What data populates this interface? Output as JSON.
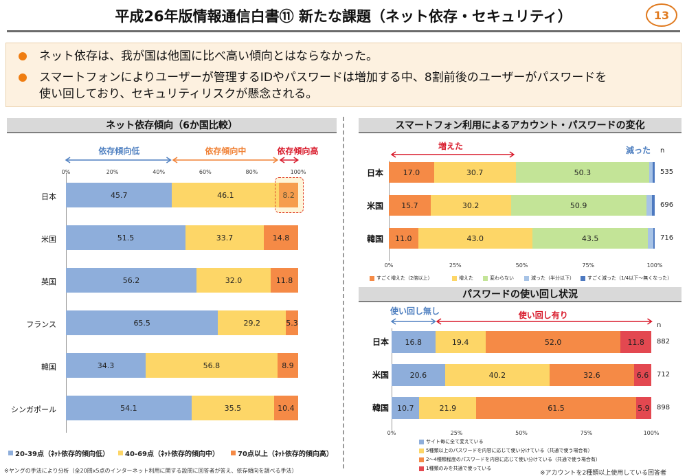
{
  "header": {
    "title": "平成26年版情報通信白書⑪ 新たな課題（ネット依存・セキュリティ）",
    "page_number": "13"
  },
  "summary": {
    "bullets": [
      "ネット依存は、我が国は他国に比べ高い傾向とはならなかった。",
      "スマートフォンによりユーザーが管理するIDやパスワードは増加する中、8割前後のユーザーがパスワードを",
      "使い回しており、セキュリティリスクが懸念される。"
    ]
  },
  "colors": {
    "blue": "#8eaedb",
    "yellow": "#fdd667",
    "orange": "#f58a46",
    "red": "#e34850",
    "green": "#c3e497",
    "light_blue": "#a7c3e6",
    "dark_blue": "#4d79c0"
  },
  "left_chart": {
    "panel_title": "ネット依存傾向（6か国比較）",
    "group_labels": {
      "low": "依存傾向低",
      "mid": "依存傾向中",
      "high": "依存傾向高"
    },
    "footnote": "※ヤングの手法により分析（全20問x5点のインターネット利用に関する設問に回答者が答え、依存傾向を調べる手法）"
  },
  "right_top_chart": {
    "panel_title": "スマートフォン利用によるアカウント・パスワードの変化",
    "arrow_increase": "増えた",
    "arrow_decrease": "減った",
    "n_header": "n"
  },
  "right_bottom_chart": {
    "panel_title": "パスワードの使い回し状況",
    "arrow_no_reuse": "使い回し無し",
    "arrow_reuse": "使い回し有り",
    "n_header": "n",
    "footnote": "※アカウントを2種類以上使用している回答者"
  },
  "chart_data": [
    {
      "type": "bar",
      "orientation": "horizontal-stacked",
      "title": "ネット依存傾向（6か国比較）",
      "categories": [
        "日本",
        "米国",
        "英国",
        "フランス",
        "韓国",
        "シンガポール"
      ],
      "x_ticks": [
        "0%",
        "20%",
        "40%",
        "60%",
        "80%",
        "100%"
      ],
      "xlim": [
        0,
        100
      ],
      "series": [
        {
          "name": "20-39点（ﾈｯﾄ依存的傾向低）",
          "color": "#8eaedb",
          "values": [
            45.7,
            51.5,
            56.2,
            65.5,
            34.3,
            54.1
          ]
        },
        {
          "name": "40-69点（ﾈｯﾄ依存的傾向中）",
          "color": "#fdd667",
          "values": [
            46.1,
            33.7,
            32.0,
            29.2,
            56.8,
            35.5
          ]
        },
        {
          "name": "70点以上（ﾈｯﾄ依存的傾向高）",
          "color": "#f58a46",
          "values": [
            8.2,
            14.8,
            11.8,
            5.3,
            8.9,
            10.4
          ]
        }
      ],
      "labels": [
        [
          "45.7",
          "51.5",
          "56.2",
          "65.5",
          "34.3",
          "54.1"
        ],
        [
          "46.1",
          "33.7",
          "32.0",
          "29.2",
          "56.8",
          "35.5"
        ],
        [
          "8.2",
          "14.8",
          "11.8",
          "5.3",
          "8.9",
          "10.4"
        ]
      ],
      "legend_position": "bottom"
    },
    {
      "type": "bar",
      "orientation": "horizontal-stacked",
      "title": "スマートフォン利用によるアカウント・パスワードの変化",
      "categories": [
        "日本",
        "米国",
        "韓国"
      ],
      "n": [
        "535",
        "696",
        "716"
      ],
      "x_ticks": [
        "0%",
        "25%",
        "50%",
        "75%",
        "100%"
      ],
      "xlim": [
        0,
        100
      ],
      "series": [
        {
          "name": "すごく増えた（2倍以上）",
          "color": "#f58a46",
          "values": [
            17.0,
            15.7,
            11.0
          ]
        },
        {
          "name": "増えた",
          "color": "#fdd667",
          "values": [
            30.7,
            30.2,
            43.0
          ]
        },
        {
          "name": "変わらない",
          "color": "#c3e497",
          "values": [
            50.3,
            50.9,
            43.5
          ]
        },
        {
          "name": "減った（半分以下）",
          "color": "#a7c3e6",
          "values": [
            1.2,
            2.2,
            2.0
          ]
        },
        {
          "name": "すごく減った（1/4以下〜無くなった）",
          "color": "#4d79c0",
          "values": [
            0.8,
            1.0,
            0.5
          ]
        }
      ],
      "labels": [
        [
          "17.0",
          "15.7",
          "11.0"
        ],
        [
          "30.7",
          "30.2",
          "43.0"
        ],
        [
          "50.3",
          "50.9",
          "43.5"
        ]
      ],
      "legend_position": "bottom"
    },
    {
      "type": "bar",
      "orientation": "horizontal-stacked",
      "title": "パスワードの使い回し状況",
      "categories": [
        "日本",
        "米国",
        "韓国"
      ],
      "n": [
        "882",
        "712",
        "898"
      ],
      "x_ticks": [
        "0%",
        "25%",
        "50%",
        "75%",
        "100%"
      ],
      "xlim": [
        0,
        100
      ],
      "series": [
        {
          "name": "サイト毎に全て変えている",
          "color": "#8eaedb",
          "values": [
            16.8,
            20.6,
            10.7
          ]
        },
        {
          "name": "5種類以上のパスワードを内容に応じて使い分けている（共通で使う場合有）",
          "color": "#fdd667",
          "values": [
            19.4,
            40.2,
            21.9
          ]
        },
        {
          "name": "2〜4種類程度のパスワードを内容に応じて使い分けている（共通で使う場合有）",
          "color": "#f58a46",
          "values": [
            52.0,
            32.6,
            61.5
          ]
        },
        {
          "name": "1種類のみを共通で使っている",
          "color": "#e34850",
          "values": [
            11.8,
            6.6,
            5.9
          ]
        }
      ],
      "labels": [
        [
          "16.8",
          "20.6",
          "10.7"
        ],
        [
          "19.4",
          "40.2",
          "21.9"
        ],
        [
          "52.0",
          "32.6",
          "61.5"
        ],
        [
          "11.8",
          "6.6",
          "5.9"
        ]
      ],
      "legend_position": "bottom"
    }
  ]
}
